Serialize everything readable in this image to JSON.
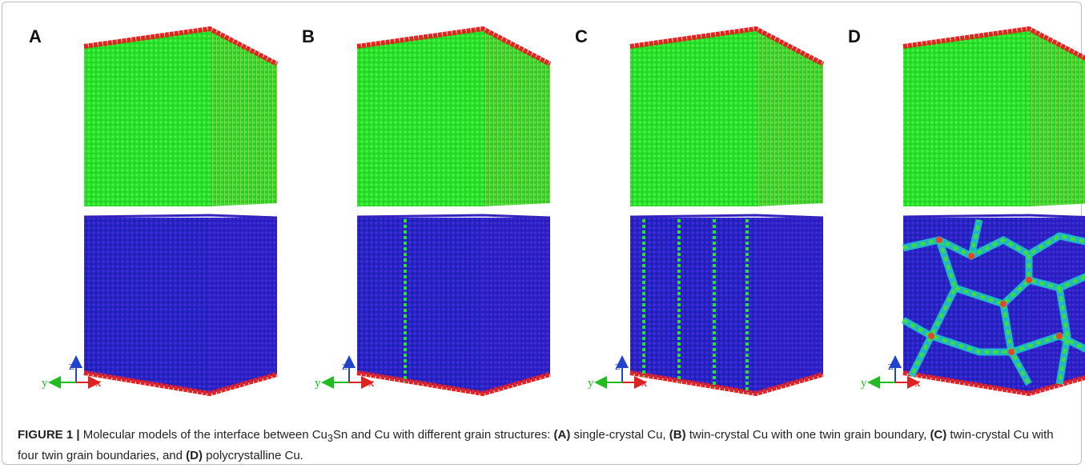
{
  "figure": {
    "panels": [
      {
        "label": "A"
      },
      {
        "label": "B"
      },
      {
        "label": "C"
      },
      {
        "label": "D"
      }
    ],
    "axes": {
      "z": "z",
      "y": "y",
      "x": "x"
    },
    "caption": {
      "label": "FIGURE 1 |",
      "parts": [
        "Molecular models of the interface between Cu",
        "3",
        "Sn and Cu with different grain structures: ",
        "(A)",
        " single-crystal Cu, ",
        "(B)",
        " twin-crystal Cu with one twin grain boundary, ",
        "(C)",
        " twin-crystal Cu with four twin grain boundaries, and ",
        "(D)",
        " polycrystalline Cu."
      ]
    }
  }
}
